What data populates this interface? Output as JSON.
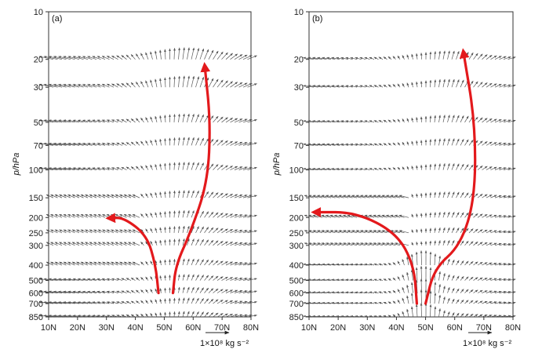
{
  "chart_data": [
    {
      "type": "vector",
      "panel_label": "(a)",
      "ylabel": "p/hPa",
      "y_scale": "log",
      "ylim": [
        850,
        10
      ],
      "xlim": [
        10,
        80
      ],
      "x_ticks": [
        "10N",
        "20N",
        "30N",
        "40N",
        "50N",
        "60N",
        "70N",
        "80N"
      ],
      "y_ticks": [
        "10",
        "20",
        "30",
        "50",
        "70",
        "100",
        "150",
        "200",
        "250",
        "300",
        "400",
        "500",
        "600",
        "700",
        "850"
      ],
      "reference_vector_label": "1×10⁸ kg s⁻²",
      "circulation_paths": [
        {
          "name": "lower-branch",
          "points": [
            [
              48,
              600
            ],
            [
              47,
              400
            ],
            [
              44,
              260
            ],
            [
              36,
              200
            ],
            [
              31,
              202
            ]
          ]
        },
        {
          "name": "upper-branch",
          "points": [
            [
              53,
              600
            ],
            [
              54,
              400
            ],
            [
              59,
              250
            ],
            [
              65,
              120
            ],
            [
              66,
              50
            ],
            [
              64,
              22
            ]
          ]
        }
      ]
    },
    {
      "type": "vector",
      "panel_label": "(b)",
      "ylabel": "p/hPa",
      "y_scale": "log",
      "ylim": [
        850,
        10
      ],
      "xlim": [
        10,
        80
      ],
      "x_ticks": [
        "10N",
        "20N",
        "30N",
        "40N",
        "50N",
        "60N",
        "70N",
        "80N"
      ],
      "y_ticks": [
        "10",
        "20",
        "30",
        "50",
        "70",
        "100",
        "150",
        "200",
        "250",
        "300",
        "400",
        "500",
        "600",
        "700",
        "850"
      ],
      "reference_vector_label": "1×10⁸ kg s⁻²",
      "circulation_paths": [
        {
          "name": "lower-branch",
          "points": [
            [
              47,
              700
            ],
            [
              46,
              400
            ],
            [
              40,
              250
            ],
            [
              26,
              185
            ],
            [
              12,
              185
            ]
          ]
        },
        {
          "name": "upper-branch",
          "points": [
            [
              50,
              700
            ],
            [
              53,
              420
            ],
            [
              62,
              300
            ],
            [
              67,
              150
            ],
            [
              67,
              50
            ],
            [
              63,
              18
            ]
          ]
        }
      ]
    }
  ],
  "colors": {
    "arrow": "#555555",
    "circulation": "#e3191c",
    "axis": "#333333"
  }
}
